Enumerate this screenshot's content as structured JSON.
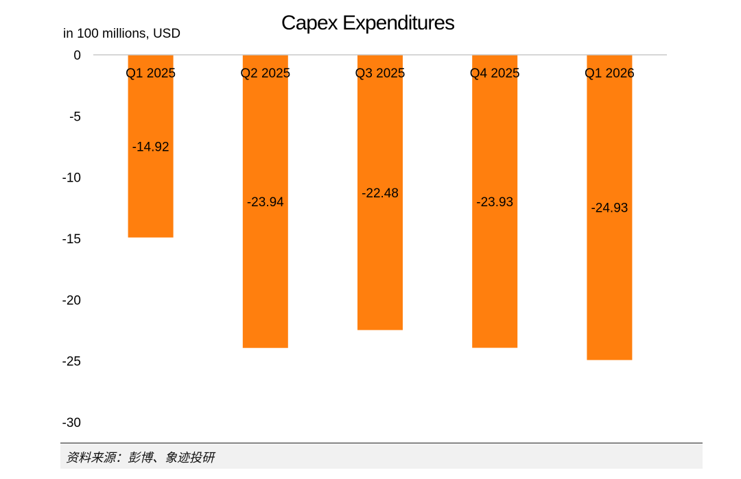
{
  "chart_data": {
    "type": "bar",
    "title": "Capex Expenditures",
    "unit_label": "in 100 millions, USD",
    "categories": [
      "Q1 2025",
      "Q2 2025",
      "Q3 2025",
      "Q4 2025",
      "Q1 2026"
    ],
    "values": [
      -14.92,
      -23.94,
      -22.48,
      -23.93,
      -24.93
    ],
    "data_labels": [
      "-14.92",
      "-23.94",
      "-22.48",
      "-23.93",
      "-24.93"
    ],
    "ylim": [
      -30,
      0
    ],
    "yticks": [
      0,
      -5,
      -10,
      -15,
      -20,
      -25,
      -30
    ],
    "ytick_labels": [
      "0",
      "-5",
      "-10",
      "-15",
      "-20",
      "-25",
      "-30"
    ],
    "xaxis_position": "top",
    "grid": false,
    "legend": "none",
    "bar_color": "#FF7F0E"
  },
  "source": "资料来源：彭博、象迹投研"
}
